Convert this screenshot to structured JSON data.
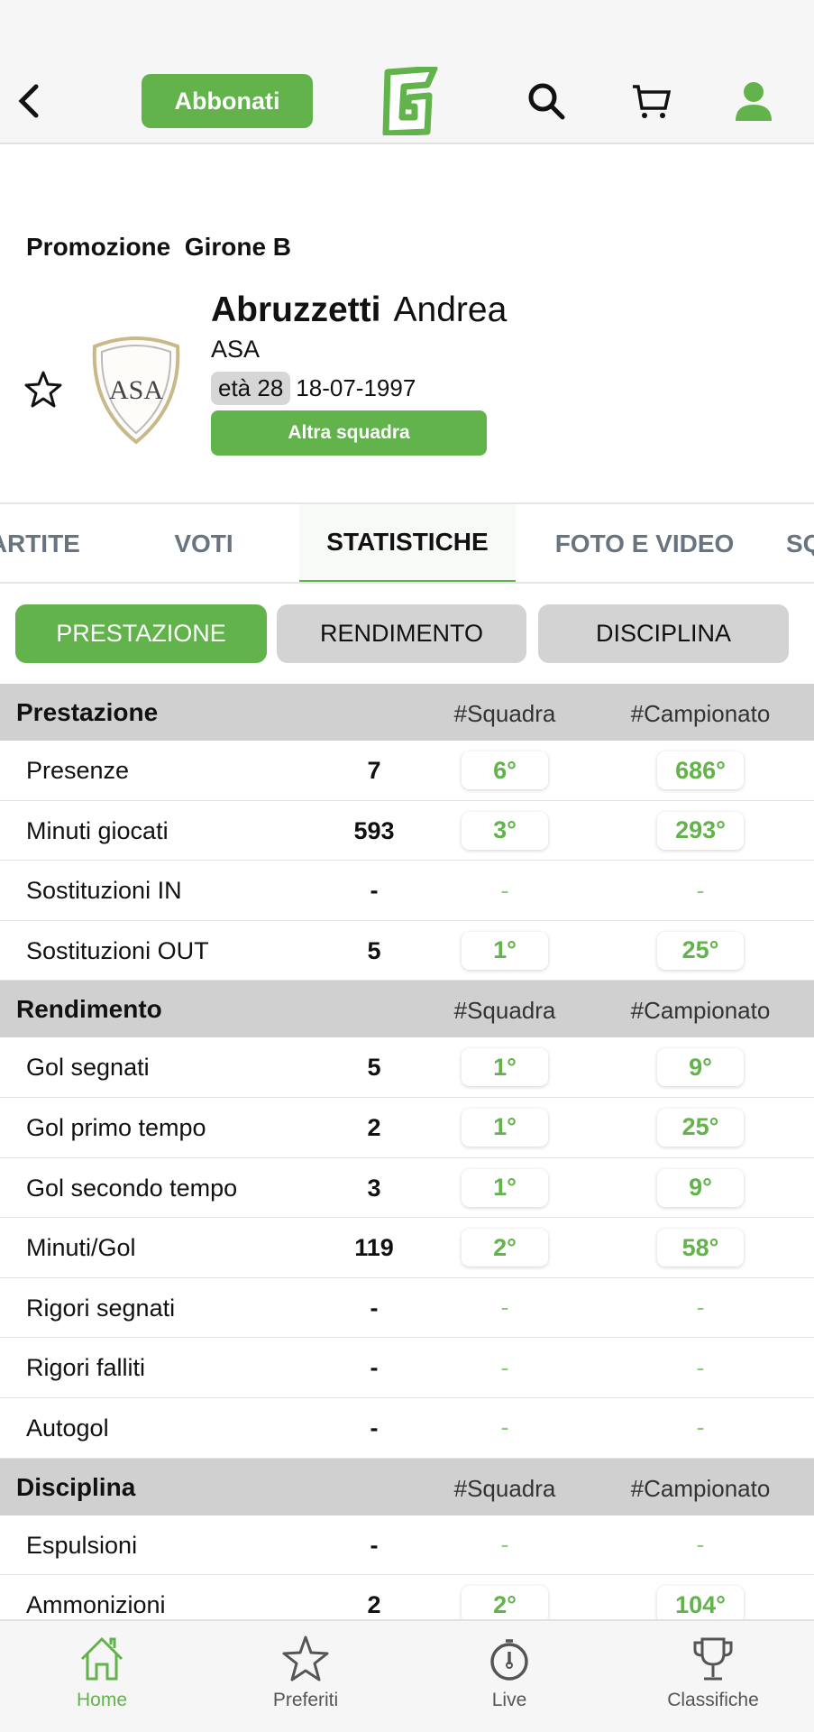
{
  "header": {
    "back_icon": "chevron-left-icon",
    "subscribe_label": "Abbonati",
    "logo_letter": "G",
    "accent": "#62b34b"
  },
  "player": {
    "league": "Promozione  Girone B",
    "surname": "Abruzzetti",
    "first_name": "Andrea",
    "team": "ASA",
    "age": "età 28",
    "birth_date": "18-07-1997",
    "other_team_label": "Altra squadra",
    "crest_text": "ASA"
  },
  "tabs": [
    {
      "label": "PARTITE"
    },
    {
      "label": "VOTI"
    },
    {
      "label": "STATISTICHE",
      "active": true
    },
    {
      "label": "FOTO E VIDEO"
    },
    {
      "label": "SQUALIFICHE"
    }
  ],
  "pills": [
    {
      "label": "PRESTAZIONE",
      "active": true
    },
    {
      "label": "RENDIMENTO"
    },
    {
      "label": "DISCIPLINA"
    }
  ],
  "sections": [
    {
      "title": "Prestazione",
      "col1": "#Squadra",
      "col2": "#Campionato",
      "rows": [
        {
          "label": "Presenze",
          "value": "7",
          "team_rank": "6°",
          "league_rank": "686°"
        },
        {
          "label": "Minuti giocati",
          "value": "593",
          "team_rank": "3°",
          "league_rank": "293°"
        },
        {
          "label": "Sostituzioni IN",
          "value": "-",
          "team_rank": "-",
          "league_rank": "-"
        },
        {
          "label": "Sostituzioni OUT",
          "value": "5",
          "team_rank": "1°",
          "league_rank": "25°"
        }
      ]
    },
    {
      "title": "Rendimento",
      "col1": "#Squadra",
      "col2": "#Campionato",
      "rows": [
        {
          "label": "Gol segnati",
          "value": "5",
          "team_rank": "1°",
          "league_rank": "9°"
        },
        {
          "label": "Gol primo tempo",
          "value": "2",
          "team_rank": "1°",
          "league_rank": "25°"
        },
        {
          "label": "Gol secondo tempo",
          "value": "3",
          "team_rank": "1°",
          "league_rank": "9°"
        },
        {
          "label": "Minuti/Gol",
          "value": "119",
          "team_rank": "2°",
          "league_rank": "58°"
        },
        {
          "label": "Rigori segnati",
          "value": "-",
          "team_rank": "-",
          "league_rank": "-"
        },
        {
          "label": "Rigori falliti",
          "value": "-",
          "team_rank": "-",
          "league_rank": "-"
        },
        {
          "label": "Autogol",
          "value": "-",
          "team_rank": "-",
          "league_rank": "-"
        }
      ]
    },
    {
      "title": "Disciplina",
      "col1": "#Squadra",
      "col2": "#Campionato",
      "rows": [
        {
          "label": "Espulsioni",
          "value": "-",
          "team_rank": "-",
          "league_rank": "-"
        },
        {
          "label": "Ammonizioni",
          "value": "2",
          "team_rank": "2°",
          "league_rank": "104°"
        }
      ]
    }
  ],
  "bottom_nav": [
    {
      "label": "Home",
      "icon": "home-icon",
      "active": true
    },
    {
      "label": "Preferiti",
      "icon": "star-icon"
    },
    {
      "label": "Live",
      "icon": "stopwatch-icon"
    },
    {
      "label": "Classifiche",
      "icon": "trophy-icon"
    }
  ]
}
